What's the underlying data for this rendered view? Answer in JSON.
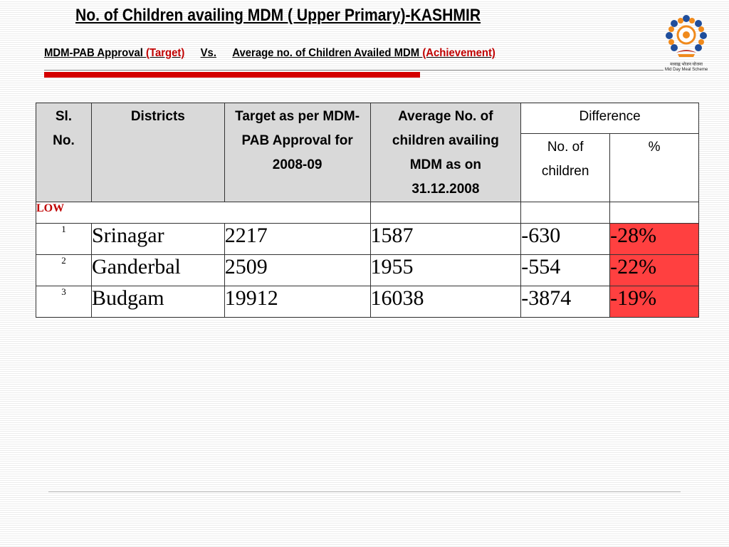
{
  "header": {
    "title": "No. of Children availing MDM ( Upper Primary)-KASHMIR",
    "subtitle_part1": "MDM-PAB Approval ",
    "subtitle_target": "(Target)",
    "subtitle_vs": "Vs.",
    "subtitle_part2": "Average no. of Children Availed MDM ",
    "subtitle_achievement": "(Achievement)"
  },
  "logo": {
    "caption_hindi": "मध्याह्न भोजन योजना",
    "caption_en": "Mid Day Meal Scheme"
  },
  "colors": {
    "accent_red": "#d40000",
    "highlight_red": "#ff4040",
    "header_gray": "#d9d9d9"
  },
  "table": {
    "headers": {
      "sl": "Sl. No.",
      "district": "Districts",
      "target": "Target as per MDM-PAB Approval for 2008-09",
      "average": "Average No. of children availing MDM as on 31.12.2008",
      "difference": "Difference",
      "no_children": "No. of children",
      "percent": "%"
    },
    "group_label": "LOW",
    "rows": [
      {
        "sl": "1",
        "district": "Srinagar",
        "target": "2217",
        "average": "1587",
        "diff": "-630",
        "pct": "-28%"
      },
      {
        "sl": "2",
        "district": "Ganderbal",
        "target": "2509",
        "average": "1955",
        "diff": "-554",
        "pct": "-22%"
      },
      {
        "sl": "3",
        "district": "Budgam",
        "target": "19912",
        "average": "16038",
        "diff": "-3874",
        "pct": "-19%"
      }
    ]
  }
}
